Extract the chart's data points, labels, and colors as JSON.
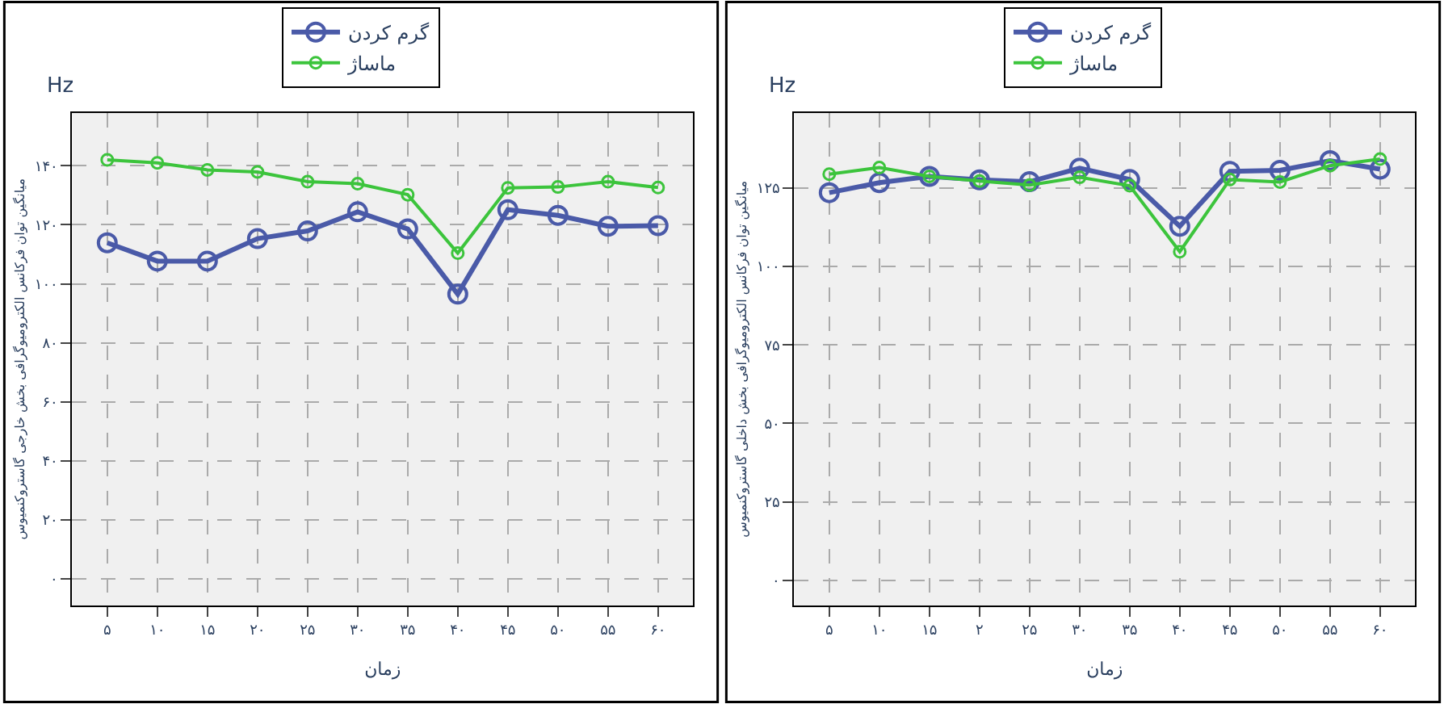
{
  "chart_data": [
    {
      "type": "line",
      "ylabel": "میانگین توان فرکانس الکترومیوگرافی بخش خارجی گاستروکنمیوس",
      "xlabel": "زمان",
      "annotations": [
        "Hz"
      ],
      "categories": [
        "۵",
        "۱۰",
        "۱۵",
        "۲۰",
        "۲۵",
        "۳۰",
        "۳۵",
        "۴۰",
        "۴۵",
        "۵۰",
        "۵۵",
        "۶۰"
      ],
      "series": [
        {
          "name": "گرم کردن",
          "color": "#4a5aa8",
          "values": [
            113.9,
            107.7,
            107.7,
            115.3,
            117.9,
            124.4,
            118.6,
            96.5,
            125.1,
            123.2,
            119.5,
            119.7
          ]
        },
        {
          "name": "ماساژ",
          "color": "#3cc43c",
          "values": [
            142,
            141,
            138.6,
            137.9,
            134.6,
            133.9,
            130.2,
            110.4,
            132.5,
            132.8,
            134.6,
            132.6
          ]
        }
      ],
      "ylim": [
        -9,
        158
      ],
      "yticks": [
        {
          "value": 0,
          "label": "۰"
        },
        {
          "value": 20,
          "label": "۲۰"
        },
        {
          "value": 40,
          "label": "۴۰"
        },
        {
          "value": 60,
          "label": "۶۰"
        },
        {
          "value": 80,
          "label": "۸۰"
        },
        {
          "value": 100,
          "label": "۱۰۰"
        },
        {
          "value": 120,
          "label": "۱۲۰"
        },
        {
          "value": 140,
          "label": "۱۴۰"
        }
      ],
      "grid": true,
      "legend": "top",
      "marker": "circle",
      "line_style": "solid"
    },
    {
      "type": "line",
      "ylabel": "میانگین توان فرکانس الکترومیوگرافی بخش داخلی گاستروکنمیوس",
      "xlabel": "زمان",
      "annotations": [
        "Hz"
      ],
      "categories": [
        "۵",
        "۱۰",
        "۱۵",
        "۲",
        "۲۵",
        "۳۰",
        "۳۵",
        "۴۰",
        "۴۵",
        "۵۰",
        "۵۵",
        "۶۰"
      ],
      "series": [
        {
          "name": "گرم کردن",
          "color": "#4a5aa8",
          "values": [
            123.5,
            126.7,
            128.7,
            127.6,
            127.0,
            131.3,
            127.7,
            112.8,
            130.3,
            130.6,
            133.7,
            131.0
          ]
        },
        {
          "name": "ماساژ",
          "color": "#3cc43c",
          "values": [
            129.4,
            131.5,
            128.7,
            127.2,
            125.9,
            128.4,
            125.7,
            104.7,
            127.7,
            126.9,
            132.1,
            134.2
          ]
        }
      ],
      "ylim": [
        -8,
        149
      ],
      "yticks": [
        {
          "value": 0,
          "label": "۰"
        },
        {
          "value": 25,
          "label": "۲۵"
        },
        {
          "value": 50,
          "label": "۵۰"
        },
        {
          "value": 75,
          "label": "۷۵"
        },
        {
          "value": 100,
          "label": "۱۰۰"
        },
        {
          "value": 125,
          "label": "۱۲۵"
        }
      ],
      "grid": true,
      "legend": "top",
      "marker": "circle",
      "line_style": "solid"
    }
  ]
}
